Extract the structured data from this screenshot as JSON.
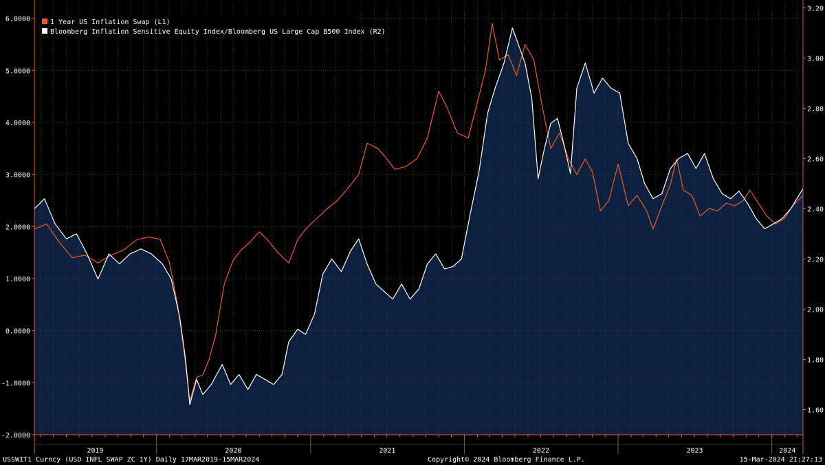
{
  "chart_data": {
    "type": "line",
    "title": "",
    "x_start": "2019-03-17",
    "x_end": "2024-03-15",
    "x_tick_labels": [
      "2019",
      "2020",
      "2021",
      "2022",
      "2023",
      "2024"
    ],
    "left_axis": {
      "ylim": [
        -2.0,
        6.3
      ],
      "ticks": [
        "6.0000",
        "5.0000",
        "4.0000",
        "3.0000",
        "2.0000",
        "1.0000",
        "0.0000",
        "-1.0000",
        "-2.0000"
      ],
      "tick_values": [
        6,
        5,
        4,
        3,
        2,
        1,
        0,
        -1,
        -2
      ],
      "color": "#f05a28"
    },
    "right_axis": {
      "ylim": [
        1.5,
        3.22
      ],
      "ticks": [
        "3.20",
        "3.00",
        "2.80",
        "2.60",
        "2.40",
        "2.20",
        "2.00",
        "1.80",
        "1.60"
      ],
      "tick_values": [
        3.2,
        3.0,
        2.8,
        2.6,
        2.4,
        2.2,
        2.0,
        1.8,
        1.6
      ],
      "color": "#ffffff"
    },
    "legend": [
      {
        "label": "1 Year US Inflation Swap (L1)",
        "color": "#f05a28"
      },
      {
        "label": "Bloomberg Inflation Sensitive Equity Index/Bloomberg US Large Cap B500 Index (R2)",
        "color": "#ffffff"
      }
    ],
    "series": [
      {
        "name": "1 Year US Inflation Swap (L1)",
        "axis": "left",
        "color": "#f05a28",
        "points": [
          [
            "2019-03-17",
            1.95
          ],
          [
            "2019-04-15",
            2.05
          ],
          [
            "2019-05-15",
            1.7
          ],
          [
            "2019-06-15",
            1.4
          ],
          [
            "2019-07-15",
            1.45
          ],
          [
            "2019-08-15",
            1.3
          ],
          [
            "2019-09-15",
            1.45
          ],
          [
            "2019-10-15",
            1.55
          ],
          [
            "2019-11-15",
            1.75
          ],
          [
            "2019-12-15",
            1.8
          ],
          [
            "2020-01-10",
            1.75
          ],
          [
            "2020-02-01",
            1.3
          ],
          [
            "2020-02-20",
            0.5
          ],
          [
            "2020-03-05",
            -0.3
          ],
          [
            "2020-03-20",
            -1.35
          ],
          [
            "2020-04-05",
            -0.9
          ],
          [
            "2020-04-20",
            -0.85
          ],
          [
            "2020-05-05",
            -0.55
          ],
          [
            "2020-05-20",
            -0.1
          ],
          [
            "2020-06-10",
            0.9
          ],
          [
            "2020-07-01",
            1.35
          ],
          [
            "2020-07-20",
            1.55
          ],
          [
            "2020-08-10",
            1.7
          ],
          [
            "2020-09-01",
            1.9
          ],
          [
            "2020-09-20",
            1.75
          ],
          [
            "2020-10-15",
            1.5
          ],
          [
            "2020-11-10",
            1.3
          ],
          [
            "2020-12-01",
            1.75
          ],
          [
            "2020-12-20",
            1.95
          ],
          [
            "2021-01-15",
            2.15
          ],
          [
            "2021-02-10",
            2.35
          ],
          [
            "2021-03-05",
            2.5
          ],
          [
            "2021-04-01",
            2.75
          ],
          [
            "2021-04-25",
            3.0
          ],
          [
            "2021-05-15",
            3.6
          ],
          [
            "2021-06-10",
            3.5
          ],
          [
            "2021-07-01",
            3.3
          ],
          [
            "2021-07-20",
            3.1
          ],
          [
            "2021-08-15",
            3.15
          ],
          [
            "2021-09-10",
            3.3
          ],
          [
            "2021-10-05",
            3.7
          ],
          [
            "2021-11-01",
            4.6
          ],
          [
            "2021-11-20",
            4.3
          ],
          [
            "2021-12-15",
            3.8
          ],
          [
            "2022-01-10",
            3.7
          ],
          [
            "2022-02-01",
            4.4
          ],
          [
            "2022-02-20",
            5.0
          ],
          [
            "2022-03-08",
            5.9
          ],
          [
            "2022-03-25",
            5.2
          ],
          [
            "2022-04-15",
            5.3
          ],
          [
            "2022-05-05",
            4.9
          ],
          [
            "2022-05-25",
            5.5
          ],
          [
            "2022-06-15",
            5.2
          ],
          [
            "2022-07-05",
            4.3
          ],
          [
            "2022-07-25",
            3.5
          ],
          [
            "2022-08-15",
            3.8
          ],
          [
            "2022-09-05",
            3.3
          ],
          [
            "2022-09-25",
            3.0
          ],
          [
            "2022-10-15",
            3.3
          ],
          [
            "2022-11-01",
            3.05
          ],
          [
            "2022-11-20",
            2.3
          ],
          [
            "2022-12-10",
            2.5
          ],
          [
            "2023-01-01",
            3.2
          ],
          [
            "2023-01-25",
            2.4
          ],
          [
            "2023-02-15",
            2.6
          ],
          [
            "2023-03-10",
            2.3
          ],
          [
            "2023-03-25",
            1.95
          ],
          [
            "2023-04-15",
            2.4
          ],
          [
            "2023-05-05",
            2.8
          ],
          [
            "2023-05-20",
            3.3
          ],
          [
            "2023-06-05",
            2.7
          ],
          [
            "2023-06-25",
            2.6
          ],
          [
            "2023-07-15",
            2.2
          ],
          [
            "2023-08-05",
            2.35
          ],
          [
            "2023-08-25",
            2.3
          ],
          [
            "2023-09-15",
            2.45
          ],
          [
            "2023-10-05",
            2.4
          ],
          [
            "2023-10-25",
            2.5
          ],
          [
            "2023-11-10",
            2.7
          ],
          [
            "2023-11-30",
            2.45
          ],
          [
            "2023-12-20",
            2.2
          ],
          [
            "2024-01-10",
            2.05
          ],
          [
            "2024-01-30",
            2.15
          ],
          [
            "2024-02-20",
            2.4
          ],
          [
            "2024-03-15",
            2.6
          ]
        ]
      },
      {
        "name": "Bloomberg Inflation Sensitive Equity Index/Bloomberg US Large Cap B500 Index (R2)",
        "axis": "right",
        "color": "#ffffff",
        "points": [
          [
            "2019-03-17",
            2.4
          ],
          [
            "2019-04-10",
            2.44
          ],
          [
            "2019-05-05",
            2.34
          ],
          [
            "2019-06-01",
            2.28
          ],
          [
            "2019-06-25",
            2.3
          ],
          [
            "2019-07-20",
            2.22
          ],
          [
            "2019-08-15",
            2.12
          ],
          [
            "2019-09-10",
            2.22
          ],
          [
            "2019-10-05",
            2.18
          ],
          [
            "2019-10-30",
            2.22
          ],
          [
            "2019-11-25",
            2.24
          ],
          [
            "2019-12-20",
            2.22
          ],
          [
            "2020-01-15",
            2.18
          ],
          [
            "2020-02-05",
            2.12
          ],
          [
            "2020-02-25",
            1.97
          ],
          [
            "2020-03-10",
            1.8
          ],
          [
            "2020-03-20",
            1.62
          ],
          [
            "2020-04-05",
            1.72
          ],
          [
            "2020-04-20",
            1.66
          ],
          [
            "2020-05-10",
            1.7
          ],
          [
            "2020-06-05",
            1.78
          ],
          [
            "2020-06-25",
            1.7
          ],
          [
            "2020-07-15",
            1.74
          ],
          [
            "2020-08-05",
            1.68
          ],
          [
            "2020-08-25",
            1.74
          ],
          [
            "2020-09-15",
            1.72
          ],
          [
            "2020-10-05",
            1.7
          ],
          [
            "2020-10-25",
            1.74
          ],
          [
            "2020-11-10",
            1.87
          ],
          [
            "2020-12-01",
            1.92
          ],
          [
            "2020-12-20",
            1.9
          ],
          [
            "2021-01-10",
            1.98
          ],
          [
            "2021-01-30",
            2.14
          ],
          [
            "2021-02-20",
            2.2
          ],
          [
            "2021-03-15",
            2.15
          ],
          [
            "2021-04-05",
            2.23
          ],
          [
            "2021-04-25",
            2.28
          ],
          [
            "2021-05-15",
            2.18
          ],
          [
            "2021-06-05",
            2.1
          ],
          [
            "2021-06-25",
            2.07
          ],
          [
            "2021-07-15",
            2.04
          ],
          [
            "2021-08-05",
            2.1
          ],
          [
            "2021-08-25",
            2.04
          ],
          [
            "2021-09-15",
            2.08
          ],
          [
            "2021-10-05",
            2.18
          ],
          [
            "2021-10-25",
            2.22
          ],
          [
            "2021-11-15",
            2.16
          ],
          [
            "2021-12-05",
            2.17
          ],
          [
            "2021-12-25",
            2.2
          ],
          [
            "2022-01-15",
            2.38
          ],
          [
            "2022-02-05",
            2.55
          ],
          [
            "2022-02-25",
            2.78
          ],
          [
            "2022-03-15",
            2.88
          ],
          [
            "2022-04-05",
            2.98
          ],
          [
            "2022-04-25",
            3.12
          ],
          [
            "2022-05-10",
            3.05
          ],
          [
            "2022-05-25",
            2.98
          ],
          [
            "2022-06-10",
            2.84
          ],
          [
            "2022-06-25",
            2.52
          ],
          [
            "2022-07-10",
            2.64
          ],
          [
            "2022-07-25",
            2.74
          ],
          [
            "2022-08-10",
            2.76
          ],
          [
            "2022-08-25",
            2.66
          ],
          [
            "2022-09-10",
            2.54
          ],
          [
            "2022-09-25",
            2.88
          ],
          [
            "2022-10-15",
            2.98
          ],
          [
            "2022-11-05",
            2.86
          ],
          [
            "2022-11-25",
            2.92
          ],
          [
            "2022-12-15",
            2.88
          ],
          [
            "2023-01-05",
            2.86
          ],
          [
            "2023-01-25",
            2.66
          ],
          [
            "2023-02-15",
            2.6
          ],
          [
            "2023-03-05",
            2.5
          ],
          [
            "2023-03-25",
            2.44
          ],
          [
            "2023-04-15",
            2.46
          ],
          [
            "2023-05-05",
            2.56
          ],
          [
            "2023-05-25",
            2.6
          ],
          [
            "2023-06-15",
            2.62
          ],
          [
            "2023-07-05",
            2.56
          ],
          [
            "2023-07-25",
            2.62
          ],
          [
            "2023-08-15",
            2.52
          ],
          [
            "2023-09-05",
            2.46
          ],
          [
            "2023-09-25",
            2.44
          ],
          [
            "2023-10-15",
            2.47
          ],
          [
            "2023-11-05",
            2.42
          ],
          [
            "2023-11-25",
            2.36
          ],
          [
            "2023-12-15",
            2.32
          ],
          [
            "2024-01-05",
            2.34
          ],
          [
            "2024-01-25",
            2.36
          ],
          [
            "2024-02-15",
            2.4
          ],
          [
            "2024-03-15",
            2.48
          ]
        ]
      }
    ]
  },
  "footer": {
    "left": "USSWIT1 Curncy (USD INFL SWAP ZC 1Y)  Daily 17MAR2019-15MAR2024",
    "center": "Copyright© 2024 Bloomberg Finance L.P.",
    "right": "15-Mar-2024 21:27:13"
  },
  "colors": {
    "background": "#000000",
    "area_fill": "#0c2040",
    "grid": "#3a3a3a",
    "axis_line": "#f05a28"
  }
}
